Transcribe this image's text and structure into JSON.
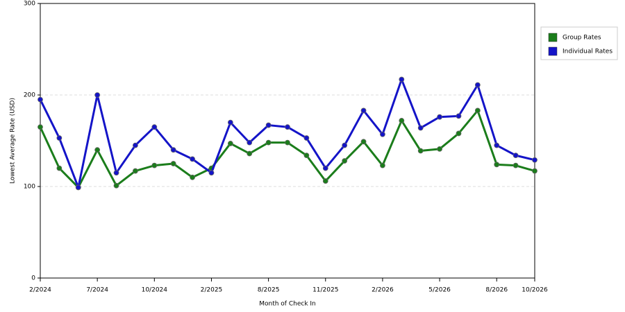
{
  "chart_data": {
    "type": "line",
    "x_label": "Month of Check In",
    "y_label": "Lowest Average Rate (USD)",
    "categories": [
      "2/2024",
      null,
      null,
      "7/2024",
      null,
      null,
      "10/2024",
      null,
      null,
      "2/2025",
      null,
      null,
      "8/2025",
      null,
      null,
      "11/2025",
      null,
      null,
      "2/2026",
      null,
      null,
      "5/2026",
      null,
      null,
      "8/2026",
      null,
      "10/2026"
    ],
    "series": [
      {
        "name": "Group Rates",
        "color": "#1b7d1b",
        "values": [
          165,
          120,
          99,
          140,
          101,
          117,
          123,
          125,
          110,
          120,
          147,
          136,
          148,
          148,
          134,
          106,
          128,
          149,
          123,
          172,
          139,
          141,
          158,
          183,
          124,
          123,
          117
        ]
      },
      {
        "name": "Individual Rates",
        "color": "#1414c8",
        "values": [
          195,
          153,
          99,
          200,
          115,
          145,
          165,
          140,
          130,
          115,
          170,
          148,
          167,
          165,
          153,
          120,
          145,
          183,
          157,
          217,
          164,
          176,
          177,
          211,
          145,
          134,
          129
        ]
      }
    ],
    "ylim": [
      0,
      300
    ],
    "yticks": [
      0,
      100,
      200,
      300
    ],
    "grid": true,
    "legend": "right"
  }
}
